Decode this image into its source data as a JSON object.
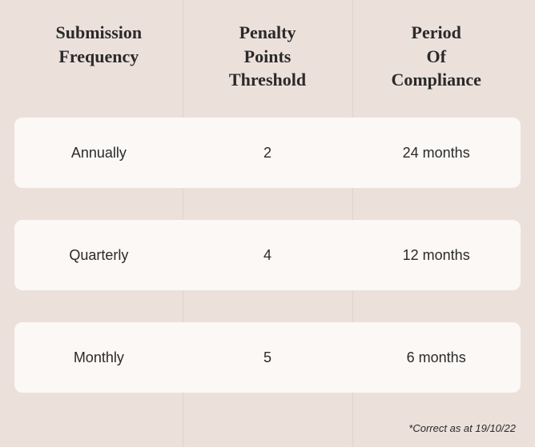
{
  "table": {
    "background_color": "#ece0db",
    "row_background_color": "#fbf8f6",
    "divider_color": "#e0d2cc",
    "header_font": "serif",
    "header_fontsize": 22,
    "header_color": "#2a2a2a",
    "cell_font": "sans-serif",
    "cell_fontsize": 18,
    "cell_color": "#2a2a2a",
    "row_border_radius": 10,
    "headers": {
      "col1_line1": "Submission",
      "col1_line2": "Frequency",
      "col2_line1": "Penalty",
      "col2_line2": "Points",
      "col2_line3": "Threshold",
      "col3_line1": "Period",
      "col3_line2": "Of",
      "col3_line3": "Compliance"
    },
    "rows": [
      {
        "frequency": "Annually",
        "threshold": "2",
        "compliance": "24 months"
      },
      {
        "frequency": "Quarterly",
        "threshold": "4",
        "compliance": "12 months"
      },
      {
        "frequency": "Monthly",
        "threshold": "5",
        "compliance": "6 months"
      }
    ]
  },
  "footnote": "*Correct as at 19/10/22"
}
